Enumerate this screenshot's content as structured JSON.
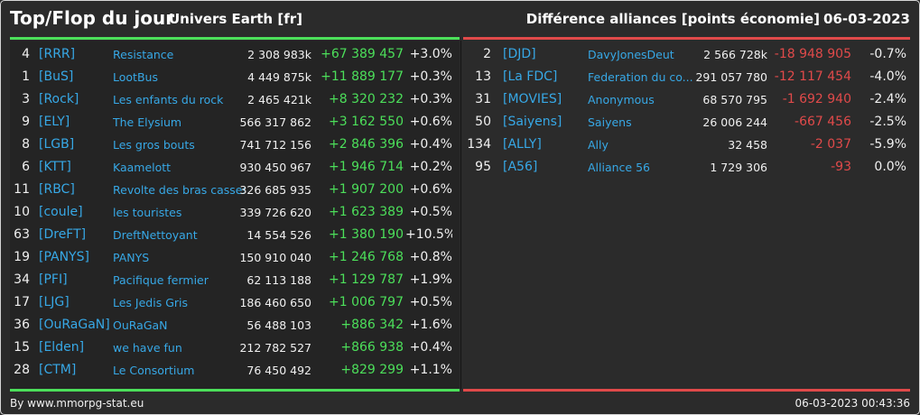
{
  "header": {
    "title": "Top/Flop du jour",
    "universe": "Univers Earth [fr]",
    "right_title": "Différence alliances [points économie]",
    "date": "06-03-2023"
  },
  "top": [
    {
      "rank": "4",
      "tag": "[RRR]",
      "name": "Resistance",
      "points": "2 308 983k",
      "diff": "+67 389 457",
      "pct": "+3.0%"
    },
    {
      "rank": "1",
      "tag": "[BuS]",
      "name": "LootBus",
      "points": "4 449 875k",
      "diff": "+11 889 177",
      "pct": "+0.3%"
    },
    {
      "rank": "3",
      "tag": "[Rock]",
      "name": "Les enfants du rock",
      "points": "2 465 421k",
      "diff": "+8 320 232",
      "pct": "+0.3%"
    },
    {
      "rank": "9",
      "tag": "[ELY]",
      "name": "The Elysium",
      "points": "566 317 862",
      "diff": "+3 162 550",
      "pct": "+0.6%"
    },
    {
      "rank": "8",
      "tag": "[LGB]",
      "name": "Les gros bouts",
      "points": "741 712 156",
      "diff": "+2 846 396",
      "pct": "+0.4%"
    },
    {
      "rank": "6",
      "tag": "[KTT]",
      "name": "Kaamelott",
      "points": "930 450 967",
      "diff": "+1 946 714",
      "pct": "+0.2%"
    },
    {
      "rank": "11",
      "tag": "[RBC]",
      "name": "Revolte des bras casses",
      "points": "326 685 935",
      "diff": "+1 907 200",
      "pct": "+0.6%"
    },
    {
      "rank": "10",
      "tag": "[coule]",
      "name": "les touristes",
      "points": "339 726 620",
      "diff": "+1 623 389",
      "pct": "+0.5%"
    },
    {
      "rank": "63",
      "tag": "[DreFT]",
      "name": "DreftNettoyant",
      "points": "14 554 526",
      "diff": "+1 380 190",
      "pct": "+10.5%"
    },
    {
      "rank": "19",
      "tag": "[PANYS]",
      "name": "PANYS",
      "points": "150 910 040",
      "diff": "+1 246 768",
      "pct": "+0.8%"
    },
    {
      "rank": "34",
      "tag": "[PFI]",
      "name": "Pacifique fermier",
      "points": "62 113 188",
      "diff": "+1 129 787",
      "pct": "+1.9%"
    },
    {
      "rank": "17",
      "tag": "[LJG]",
      "name": "Les Jedis Gris",
      "points": "186 460 650",
      "diff": "+1 006 797",
      "pct": "+0.5%"
    },
    {
      "rank": "36",
      "tag": "[OuRaGaN]",
      "name": "OuRaGaN",
      "points": "56 488 103",
      "diff": "+886 342",
      "pct": "+1.6%"
    },
    {
      "rank": "15",
      "tag": "[Elden]",
      "name": "we have fun",
      "points": "212 782 527",
      "diff": "+866 938",
      "pct": "+0.4%"
    },
    {
      "rank": "28",
      "tag": "[CTM]",
      "name": "Le Consortium",
      "points": "76 450 492",
      "diff": "+829 299",
      "pct": "+1.1%"
    }
  ],
  "flop": [
    {
      "rank": "2",
      "tag": "[DJD]",
      "name": "DavyJonesDeut",
      "points": "2 566 728k",
      "diff": "-18 948 905",
      "pct": "-0.7%"
    },
    {
      "rank": "13",
      "tag": "[La FDC]",
      "name": "Federation du co...",
      "points": "291 057 780",
      "diff": "-12 117 454",
      "pct": "-4.0%"
    },
    {
      "rank": "31",
      "tag": "[MOVIES]",
      "name": "Anonymous",
      "points": "68 570 795",
      "diff": "-1 692 940",
      "pct": "-2.4%"
    },
    {
      "rank": "50",
      "tag": "[Saiyens]",
      "name": "Saiyens",
      "points": "26 006 244",
      "diff": "-667 456",
      "pct": "-2.5%"
    },
    {
      "rank": "134",
      "tag": "[ALLY]",
      "name": "Ally",
      "points": "32 458",
      "diff": "-2 037",
      "pct": "-5.9%"
    },
    {
      "rank": "95",
      "tag": "[A56]",
      "name": "Alliance 56",
      "points": "1 729 306",
      "diff": "-93",
      "pct": "0.0%"
    }
  ],
  "footer": {
    "source": "By www.mmorpg-stat.eu",
    "timestamp": "06-03-2023 00:43:36"
  },
  "colors": {
    "gain": "#4cdf5a",
    "loss": "#e04a4a",
    "link": "#37a8e6",
    "background": "#2b2b2b"
  }
}
